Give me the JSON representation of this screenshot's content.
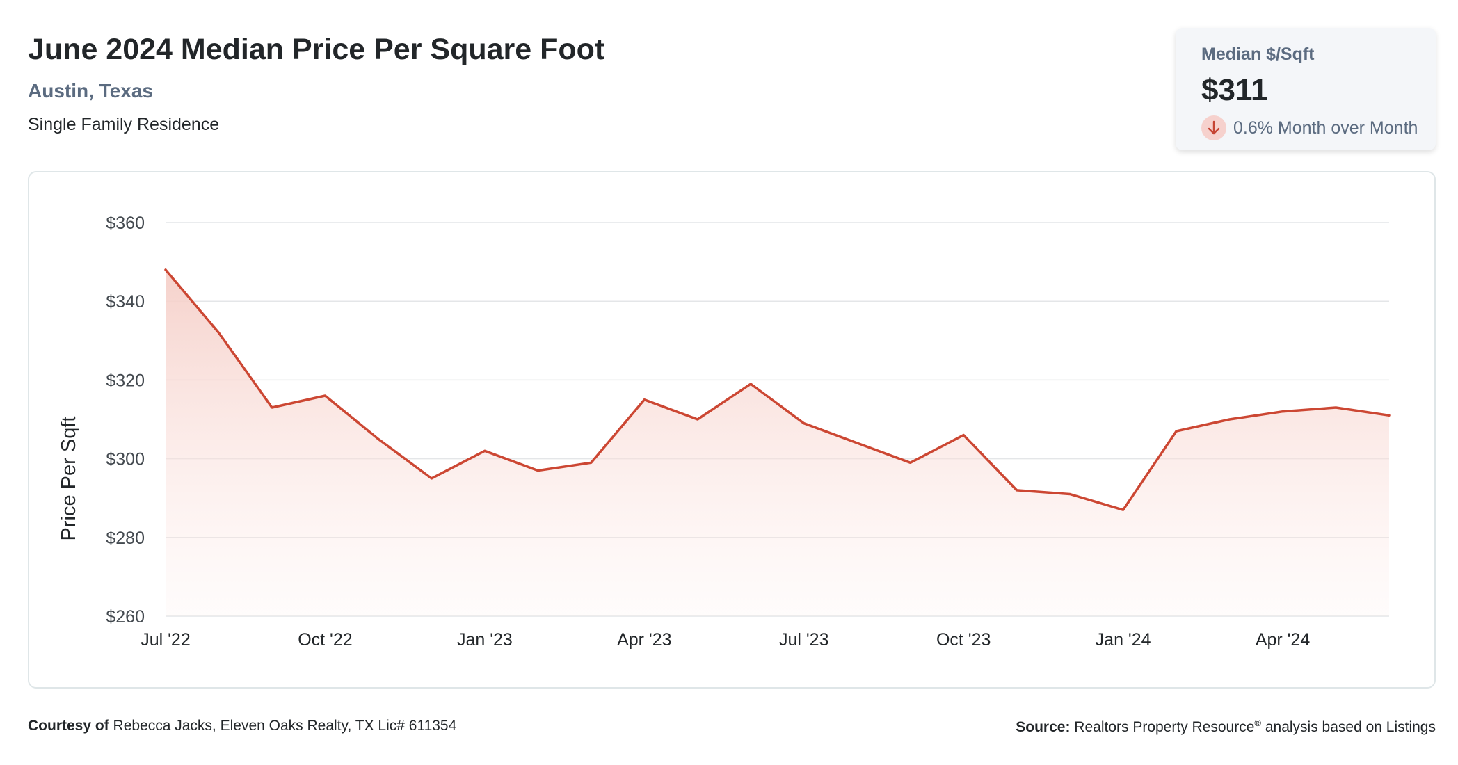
{
  "header": {
    "title": "June 2024 Median Price Per Square Foot",
    "location": "Austin, Texas",
    "property_type": "Single Family Residence"
  },
  "stat_card": {
    "label": "Median $/Sqft",
    "value": "$311",
    "change": "0.6% Month over Month",
    "direction": "down",
    "icon": "arrow-down-icon"
  },
  "colors": {
    "line": "#cc4733",
    "fill_top": "#f6d3cd",
    "grid": "#e4e6e8",
    "text_secondary": "#5b6b80"
  },
  "chart_data": {
    "type": "area",
    "ylabel": "Price Per Sqft",
    "xlabel": "",
    "ylim": [
      260,
      360
    ],
    "yticks": [
      260,
      280,
      300,
      320,
      340,
      360
    ],
    "ytick_labels": [
      "$260",
      "$280",
      "$300",
      "$320",
      "$340",
      "$360"
    ],
    "x_tick_labels": [
      "Jul '22",
      "Oct '22",
      "Jan '23",
      "Apr '23",
      "Jul '23",
      "Oct '23",
      "Jan '24",
      "Apr '24"
    ],
    "x_tick_indices": [
      0,
      3,
      6,
      9,
      12,
      15,
      18,
      21
    ],
    "grid": true,
    "categories": [
      "2022-07",
      "2022-08",
      "2022-09",
      "2022-10",
      "2022-11",
      "2022-12",
      "2023-01",
      "2023-02",
      "2023-03",
      "2023-04",
      "2023-05",
      "2023-06",
      "2023-07",
      "2023-08",
      "2023-09",
      "2023-10",
      "2023-11",
      "2023-12",
      "2024-01",
      "2024-02",
      "2024-03",
      "2024-04",
      "2024-05",
      "2024-06"
    ],
    "values": [
      348,
      332,
      313,
      316,
      305,
      295,
      302,
      297,
      299,
      315,
      310,
      319,
      309,
      304,
      299,
      306,
      292,
      291,
      287,
      307,
      310,
      312,
      313,
      311
    ]
  },
  "footer": {
    "courtesy_label": "Courtesy of",
    "courtesy_text": "Rebecca Jacks, Eleven Oaks Realty, TX Lic# 611354",
    "source_label": "Source:",
    "source_text_1": "Realtors Property Resource",
    "source_sup": "®",
    "source_text_2": " analysis based on Listings"
  }
}
